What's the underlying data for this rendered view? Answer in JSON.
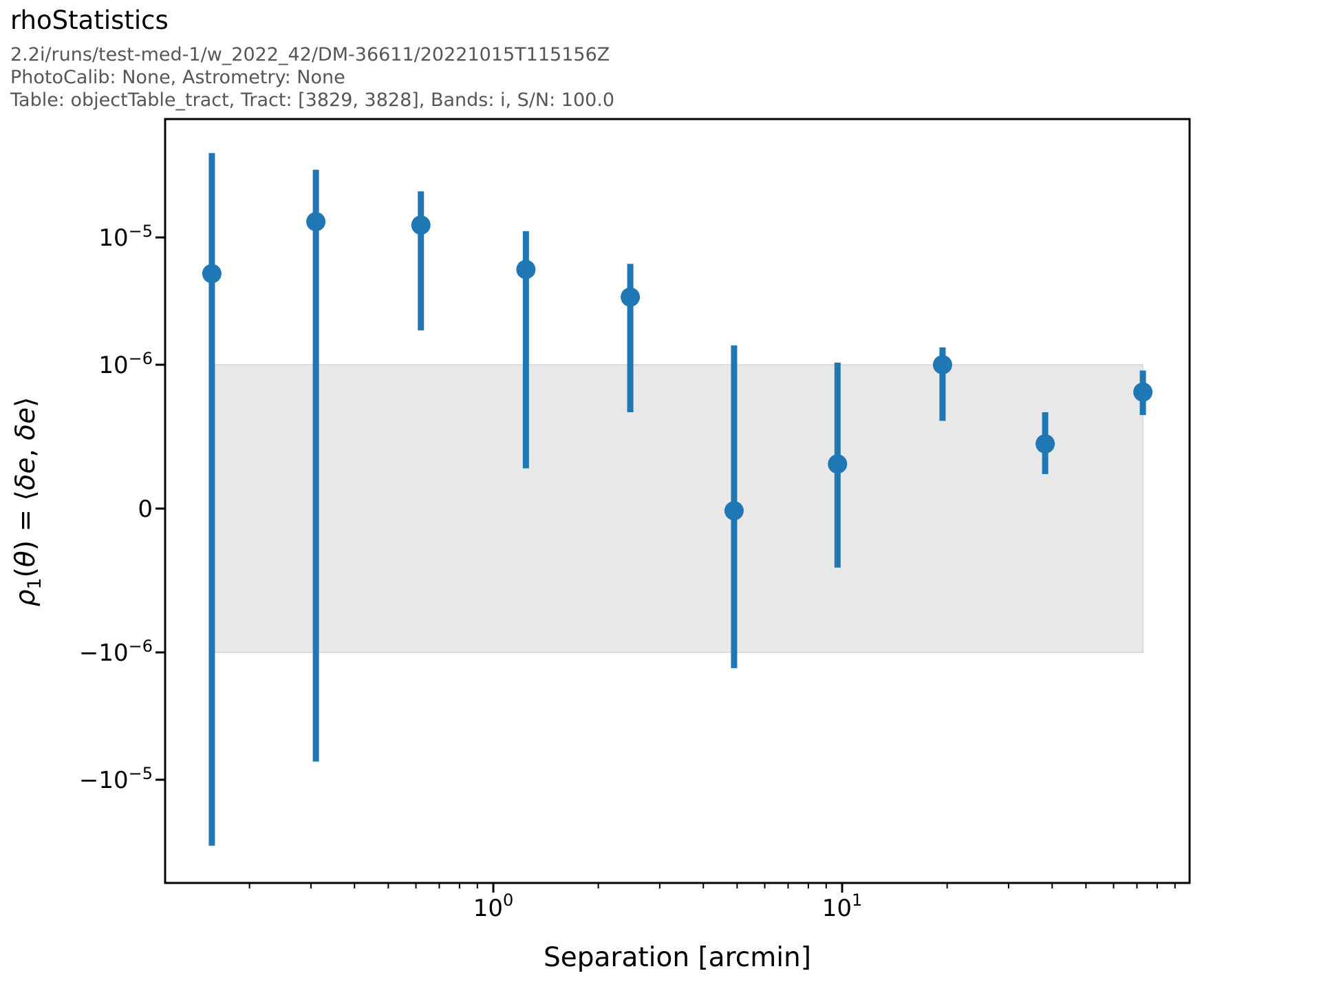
{
  "header": {
    "title": "rhoStatistics",
    "line1": "2.2i/runs/test-med-1/w_2022_42/DM-36611/20221015T115156Z",
    "line2": "PhotoCalib: None, Astrometry: None",
    "line3": "Table: objectTable_tract, Tract: [3829, 3828], Bands: i, S/N: 100.0"
  },
  "colors": {
    "accent_blue": "#1f77b4",
    "band_fill": "#e8e8e8",
    "band_edge": "#dcdcdc",
    "subtitle_gray": "#565656",
    "axis_black": "#000000"
  },
  "chart_data": {
    "type": "scatter",
    "title": "rhoStatistics",
    "xlabel": "Separation [arcmin]",
    "ylabel": "ρ₁(θ) = ⟨δe, δe⟩",
    "ylabel_parts": [
      {
        "text": "ρ",
        "style": "italic"
      },
      {
        "text": "1",
        "script": "sub"
      },
      {
        "text": "(",
        "style": "normal"
      },
      {
        "text": "θ",
        "style": "italic"
      },
      {
        "text": ") = ⟨",
        "style": "normal"
      },
      {
        "text": "δe",
        "style": "italic"
      },
      {
        "text": ", ",
        "style": "normal"
      },
      {
        "text": "δe",
        "style": "italic"
      },
      {
        "text": "⟩",
        "style": "normal"
      }
    ],
    "x_scale": "log",
    "y_scale": "symlog",
    "y_linthresh": 1e-06,
    "xlim": [
      0.115,
      99
    ],
    "ylim": [
      -6.5e-05,
      8.5e-05
    ],
    "grid": false,
    "legend": "none",
    "x_ticks": [
      1,
      10
    ],
    "x_tick_labels": [
      "10^0",
      "10^1"
    ],
    "y_ticks": [
      1e-05,
      1e-06,
      0,
      -1e-06,
      -1e-05
    ],
    "y_tick_labels": [
      "10^-5",
      "10^-6",
      "0",
      "-10^-6",
      "-10^-5"
    ],
    "band": {
      "x_min": 0.156,
      "x_max": 72.8,
      "y_min": -1e-06,
      "y_max": 1e-06
    },
    "points": [
      {
        "x": 0.156,
        "y": 5.2e-06,
        "y_hi": 4.6e-05,
        "y_lo": -3.3e-05
      },
      {
        "x": 0.31,
        "y": 1.33e-05,
        "y_hi": 3.4e-05,
        "y_lo": -7.2e-06
      },
      {
        "x": 0.62,
        "y": 1.25e-05,
        "y_hi": 2.3e-05,
        "y_lo": 1.86e-06
      },
      {
        "x": 1.24,
        "y": 5.6e-06,
        "y_hi": 1.12e-05,
        "y_lo": 2.8e-07
      },
      {
        "x": 2.47,
        "y": 3.4e-06,
        "y_hi": 6.2e-06,
        "y_lo": 6.7e-07
      },
      {
        "x": 4.9,
        "y": -1.5e-08,
        "y_hi": 1.42e-06,
        "y_lo": -1.33e-06
      },
      {
        "x": 9.7,
        "y": 3.1e-07,
        "y_hi": 1.04e-06,
        "y_lo": -4.1e-07
      },
      {
        "x": 19.4,
        "y": 1e-06,
        "y_hi": 1.37e-06,
        "y_lo": 6.1e-07
      },
      {
        "x": 38.2,
        "y": 4.5e-07,
        "y_hi": 6.7e-07,
        "y_lo": 2.4e-07
      },
      {
        "x": 72.8,
        "y": 8.1e-07,
        "y_hi": 9.6e-07,
        "y_lo": 6.5e-07
      }
    ]
  }
}
